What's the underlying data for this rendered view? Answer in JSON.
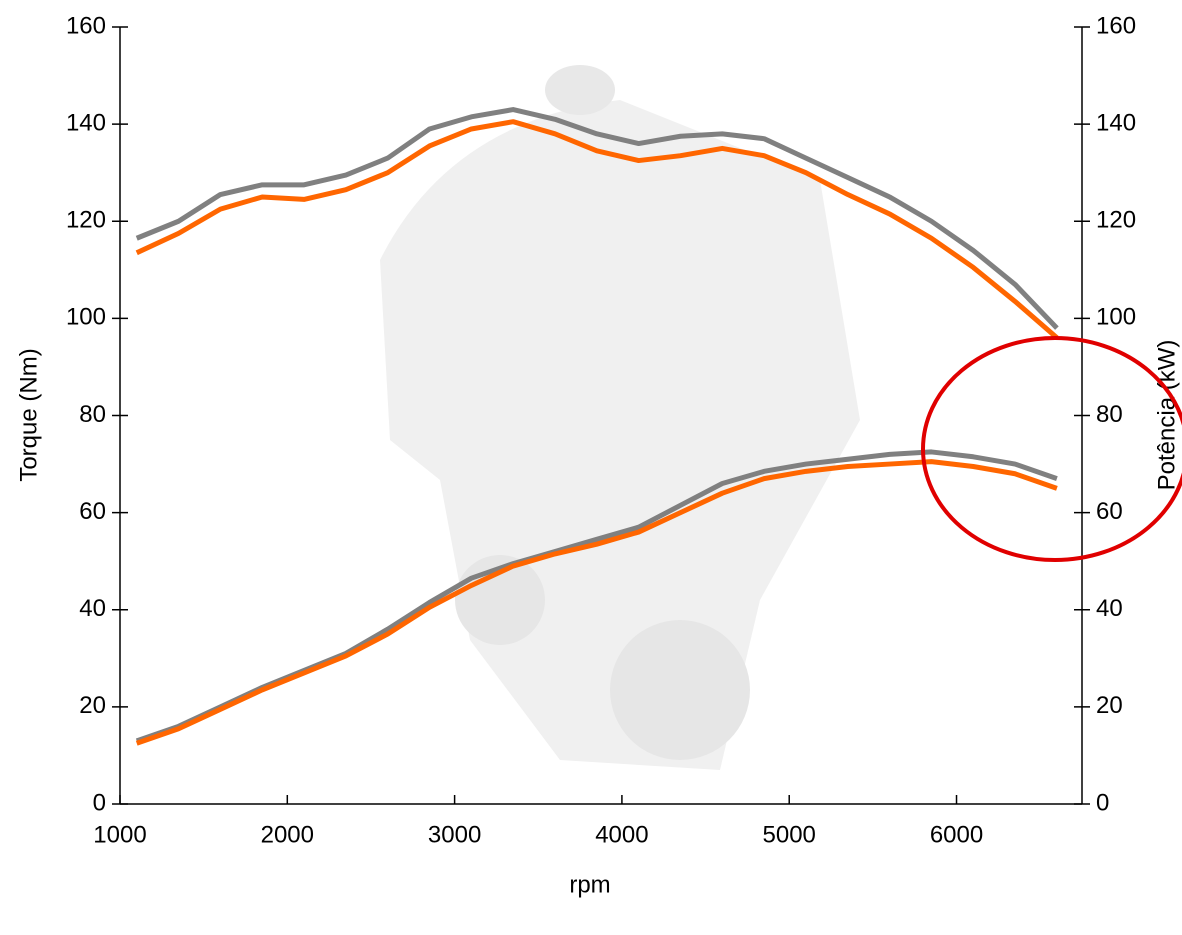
{
  "chart_data": {
    "type": "line",
    "x_label": "rpm",
    "y_label": "Torque (Nm)",
    "y2_label": "Potência (kW)",
    "x": [
      1100,
      1350,
      1600,
      1850,
      2100,
      2350,
      2600,
      2850,
      3100,
      3350,
      3600,
      3850,
      4100,
      4350,
      4600,
      4850,
      5100,
      5350,
      5600,
      5850,
      6100,
      6350,
      6600
    ],
    "series": [
      {
        "color": "#808080",
        "values": [
          116.5,
          120,
          125.5,
          127.5,
          127.5,
          129.5,
          133,
          139,
          141.5,
          143,
          141,
          138,
          136,
          137.5,
          138,
          137,
          133,
          129,
          125,
          120,
          114,
          107,
          98
        ]
      },
      {
        "color": "#ff6600",
        "values": [
          113.5,
          117.5,
          122.5,
          125,
          124.5,
          126.5,
          130,
          135.5,
          139,
          140.5,
          138,
          134.5,
          132.5,
          133.5,
          135,
          133.5,
          130,
          125.5,
          121.5,
          116.5,
          110.5,
          103.5,
          96
        ]
      },
      {
        "color": "#808080",
        "axis": "y2",
        "values": [
          13,
          16,
          20,
          24,
          27.5,
          31,
          36,
          41.5,
          46.5,
          49.5,
          52,
          54.5,
          57,
          61.5,
          66,
          68.5,
          70,
          71,
          72,
          72.5,
          71.5,
          70,
          67
        ]
      },
      {
        "color": "#ff6600",
        "axis": "y2",
        "values": [
          12.5,
          15.5,
          19.5,
          23.5,
          27,
          30.5,
          35,
          40.5,
          45,
          49,
          51.5,
          53.5,
          56,
          60,
          64,
          67,
          68.5,
          69.5,
          70,
          70.5,
          69.5,
          68,
          65
        ]
      }
    ],
    "xlim": [
      1000,
      6750
    ],
    "xticks": [
      1000,
      2000,
      3000,
      4000,
      5000,
      6000
    ],
    "ylim": [
      0,
      160
    ],
    "yticks": [
      0,
      20,
      40,
      60,
      80,
      100,
      120,
      140,
      160
    ],
    "y2lim": [
      0,
      160
    ],
    "y2ticks": [
      0,
      20,
      40,
      60,
      80,
      100,
      120,
      140,
      160
    ]
  }
}
